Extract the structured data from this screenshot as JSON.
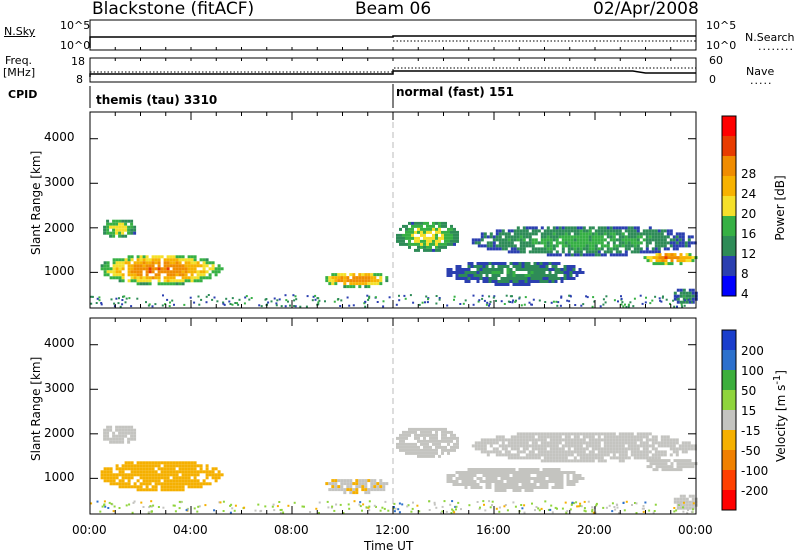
{
  "header": {
    "title": "Blackstone (fitACF)",
    "beam": "Beam 06",
    "date": "02/Apr/2008"
  },
  "strips": {
    "nsky_label": "N.Sky",
    "nsky_ticks": [
      "10^5",
      "10^0"
    ],
    "nsearch_label": "N.Search",
    "nsearch_ticks": [
      "10^5",
      "10^0"
    ],
    "freq_label_line1": "Freq.",
    "freq_label_line2": "[MHz]",
    "freq_ticks": [
      "18",
      "8"
    ],
    "nave_label": "Nave",
    "nave_ticks": [
      "60",
      "0"
    ],
    "cpid_label": "CPID",
    "cpid_segments": [
      {
        "label": "themis (tau) 3310",
        "start_hour": 0
      },
      {
        "label": "normal (fast) 151",
        "start_hour": 12
      }
    ]
  },
  "axes": {
    "ylabel": "Slant Range [km]",
    "xlabel": "Time UT",
    "yticks": [
      1000,
      2000,
      3000,
      4000
    ],
    "ylim": [
      200,
      4600
    ],
    "xticks": [
      "00:00",
      "04:00",
      "08:00",
      "12:00",
      "16:00",
      "20:00",
      "00:00"
    ],
    "xlim_hours": [
      0,
      24
    ]
  },
  "power_colorbar": {
    "label": "Power [dB]",
    "ticks": [
      "4",
      "8",
      "12",
      "16",
      "20",
      "24",
      "28"
    ],
    "colors": [
      "#0000ff",
      "#2b3fb0",
      "#2e8b57",
      "#36b044",
      "#f5e02a",
      "#f7b200",
      "#f08c00",
      "#e83c00",
      "#ff0000"
    ]
  },
  "velocity_colorbar": {
    "label": "Velocity [m s",
    "label_sup": "-1",
    "label_end": "]",
    "ticks": [
      "200",
      "100",
      "50",
      "15",
      "-15",
      "-50",
      "-100",
      "-200"
    ],
    "colors": [
      "#1a3ecc",
      "#2c70cc",
      "#3cae3c",
      "#8fd43c",
      "#c4c4c0",
      "#f5b000",
      "#f08000",
      "#ff4000",
      "#ff0000"
    ]
  },
  "chart_data": {
    "type": "heatmap",
    "title": "Blackstone (fitACF)",
    "xlabel": "Time UT",
    "ylabel": "Slant Range [km]",
    "x_range_hours": [
      0,
      24
    ],
    "ylim": [
      200,
      4600
    ],
    "mode_change_hour": 12,
    "panels": [
      "Power [dB]",
      "Velocity [m s-1]"
    ],
    "echo_regions": [
      {
        "t_start": 0.4,
        "t_end": 1.8,
        "range_low": 1800,
        "range_high": 2250,
        "power_db": 14,
        "velocity": 0
      },
      {
        "t_start": 0.3,
        "t_end": 5.2,
        "range_low": 750,
        "range_high": 1450,
        "power_db": 22,
        "velocity": -30
      },
      {
        "t_start": 9.2,
        "t_end": 11.8,
        "range_low": 700,
        "range_high": 1050,
        "power_db": 22,
        "velocity": -10
      },
      {
        "t_start": 12.0,
        "t_end": 14.6,
        "range_low": 1500,
        "range_high": 2200,
        "power_db": 14,
        "velocity": 0
      },
      {
        "t_start": 14.0,
        "t_end": 19.5,
        "range_low": 750,
        "range_high": 1300,
        "power_db": 8,
        "velocity": 0
      },
      {
        "t_start": 15.0,
        "t_end": 24.0,
        "range_low": 1400,
        "range_high": 2100,
        "power_db": 10,
        "velocity": 0
      },
      {
        "t_start": 21.8,
        "t_end": 24.0,
        "range_low": 1200,
        "range_high": 1500,
        "power_db": 22,
        "velocity": 0
      },
      {
        "t_start": 23.0,
        "t_end": 24.0,
        "range_low": 300,
        "range_high": 700,
        "power_db": 8,
        "velocity": 0
      }
    ]
  }
}
